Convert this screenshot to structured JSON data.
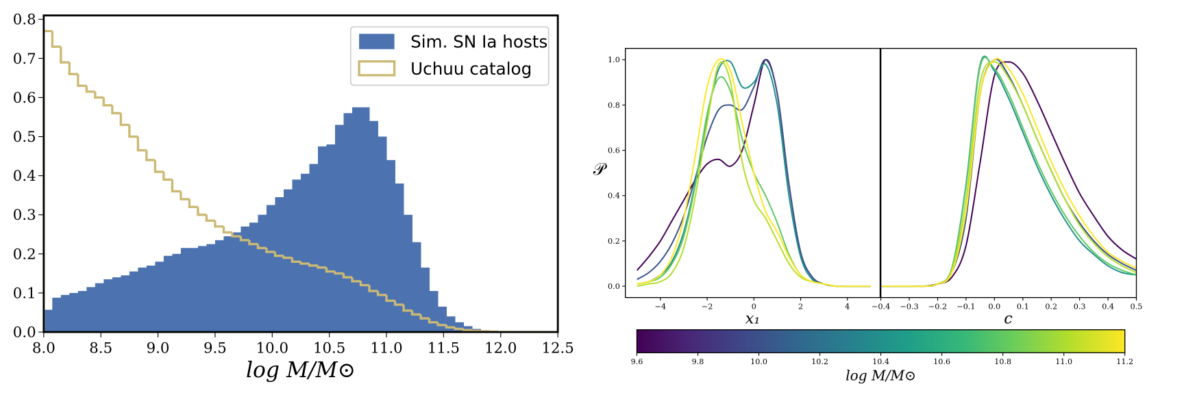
{
  "chart_data": [
    {
      "type": "histogram",
      "xlabel": "log M/M⊙",
      "legend": "upper right",
      "bins": [
        8,
        8.075,
        8.15,
        8.225,
        8.3,
        8.375,
        8.45,
        8.525,
        8.6,
        8.675,
        8.75,
        8.825,
        8.9,
        8.975,
        9.05,
        9.125,
        9.2,
        9.275,
        9.35,
        9.425,
        9.5,
        9.575,
        9.65,
        9.725,
        9.8,
        9.875,
        9.95,
        10.025,
        10.1,
        10.175,
        10.25,
        10.325,
        10.4,
        10.475,
        10.55,
        10.625,
        10.7,
        10.775,
        10.85,
        10.925,
        11,
        11.075,
        11.15,
        11.225,
        11.3,
        11.375,
        11.45,
        11.525,
        11.6,
        11.675,
        11.75,
        11.825,
        11.9,
        11.975,
        12.05,
        12.125,
        12.2,
        12.275,
        12.35,
        12.425,
        12.5
      ],
      "series": [
        {
          "name": "Sim. SN Ia hosts",
          "color": "#4c72b0",
          "histtype": "bar",
          "values": [
            0.057,
            0.088,
            0.095,
            0.1,
            0.105,
            0.115,
            0.125,
            0.135,
            0.14,
            0.145,
            0.155,
            0.165,
            0.17,
            0.18,
            0.195,
            0.2,
            0.215,
            0.215,
            0.22,
            0.225,
            0.235,
            0.245,
            0.255,
            0.27,
            0.28,
            0.3,
            0.325,
            0.345,
            0.365,
            0.39,
            0.405,
            0.43,
            0.475,
            0.48,
            0.53,
            0.56,
            0.575,
            0.575,
            0.54,
            0.5,
            0.44,
            0.38,
            0.3,
            0.23,
            0.165,
            0.105,
            0.065,
            0.04,
            0.025,
            0.015,
            0.008,
            0.004,
            0.002,
            0.001,
            0,
            0,
            0,
            0,
            0,
            0
          ]
        },
        {
          "name": "Uchuu catalog",
          "color": "#ccb974",
          "histtype": "step",
          "values": [
            0.77,
            0.73,
            0.69,
            0.66,
            0.63,
            0.615,
            0.6,
            0.58,
            0.56,
            0.53,
            0.5,
            0.465,
            0.44,
            0.41,
            0.39,
            0.36,
            0.34,
            0.32,
            0.3,
            0.285,
            0.27,
            0.255,
            0.245,
            0.235,
            0.225,
            0.215,
            0.205,
            0.195,
            0.19,
            0.18,
            0.175,
            0.17,
            0.165,
            0.155,
            0.15,
            0.14,
            0.13,
            0.12,
            0.105,
            0.095,
            0.08,
            0.07,
            0.055,
            0.045,
            0.035,
            0.025,
            0.018,
            0.012,
            0.008,
            0.005,
            0.003,
            0.002,
            0.001,
            0,
            0,
            0,
            0,
            0,
            0,
            0
          ]
        }
      ],
      "xlim": [
        8,
        12.5
      ],
      "xticks": [
        {
          "value": 8,
          "label": "8.0"
        },
        8.5,
        {
          "value": 9,
          "label": "9.0"
        },
        9.5,
        {
          "value": 10,
          "label": "10.0"
        },
        10.5,
        {
          "value": 11,
          "label": "11.0"
        },
        11.5,
        {
          "value": 12,
          "label": "12.0"
        },
        12.5
      ],
      "ylim": [
        0,
        0.81
      ],
      "yticks": [
        {
          "value": 0,
          "label": "0.0"
        },
        0.1,
        0.2,
        0.3,
        0.4,
        0.5,
        0.6,
        0.7,
        0.8
      ]
    },
    {
      "type": "line",
      "xlabel": "x₁",
      "ylabel": "𝒫",
      "x": [
        -5,
        -4.5,
        -4,
        -3.5,
        -3,
        -2.5,
        -2,
        -1.5,
        -1,
        -0.5,
        0,
        0.5,
        1,
        1.5,
        2,
        2.5,
        3,
        3.5,
        4,
        4.5,
        5
      ],
      "series": [
        {
          "color": "#440154",
          "values": [
            0.07,
            0.13,
            0.2,
            0.29,
            0.38,
            0.47,
            0.54,
            0.56,
            0.53,
            0.6,
            0.8,
            1.0,
            0.85,
            0.45,
            0.15,
            0.04,
            0.01,
            0,
            0,
            0,
            0
          ]
        },
        {
          "color": "#3b528b",
          "values": [
            0.03,
            0.06,
            0.11,
            0.19,
            0.31,
            0.48,
            0.66,
            0.78,
            0.8,
            0.78,
            0.88,
            1.0,
            0.85,
            0.45,
            0.15,
            0.04,
            0.01,
            0,
            0,
            0,
            0
          ]
        },
        {
          "color": "#21918c",
          "values": [
            0.01,
            0.02,
            0.05,
            0.11,
            0.24,
            0.46,
            0.75,
            0.96,
            0.99,
            0.88,
            0.9,
            0.98,
            0.8,
            0.4,
            0.13,
            0.03,
            0.01,
            0,
            0,
            0,
            0
          ]
        },
        {
          "color": "#5ec962",
          "values": [
            0.01,
            0.02,
            0.04,
            0.1,
            0.22,
            0.45,
            0.76,
            0.92,
            0.86,
            0.65,
            0.5,
            0.4,
            0.28,
            0.14,
            0.05,
            0.02,
            0.01,
            0,
            0,
            0,
            0
          ]
        },
        {
          "color": "#b5de2b",
          "values": [
            0,
            0.01,
            0.02,
            0.06,
            0.17,
            0.4,
            0.72,
            0.98,
            0.9,
            0.55,
            0.38,
            0.3,
            0.2,
            0.1,
            0.04,
            0.02,
            0.01,
            0,
            0,
            0,
            0
          ]
        },
        {
          "color": "#fde725",
          "values": [
            0.01,
            0.02,
            0.05,
            0.13,
            0.3,
            0.58,
            0.88,
            1.0,
            0.95,
            0.72,
            0.5,
            0.33,
            0.24,
            0.13,
            0.05,
            0.02,
            0.01,
            0,
            0,
            0,
            0
          ]
        }
      ],
      "xlim": [
        -5.5,
        5.4
      ],
      "xticks": [
        {
          "value": -4,
          "label": "−4"
        },
        {
          "value": -2,
          "label": "−2"
        },
        0,
        2,
        4
      ],
      "ylim": [
        -0.05,
        1.05
      ],
      "yticks": [
        {
          "value": 0,
          "label": "0.0"
        },
        0.2,
        0.4,
        0.6,
        0.8,
        {
          "value": 1,
          "label": "1.0"
        }
      ]
    },
    {
      "type": "line",
      "xlabel": "c",
      "x": [
        -0.4,
        -0.35,
        -0.3,
        -0.25,
        -0.2,
        -0.15,
        -0.1,
        -0.05,
        0,
        0.05,
        0.1,
        0.15,
        0.2,
        0.25,
        0.3,
        0.35,
        0.4,
        0.45,
        0.5
      ],
      "series": [
        {
          "color": "#440154",
          "values": [
            0,
            0,
            0,
            0,
            0.01,
            0.04,
            0.18,
            0.55,
            0.93,
            0.99,
            0.94,
            0.82,
            0.68,
            0.54,
            0.41,
            0.31,
            0.22,
            0.16,
            0.12
          ]
        },
        {
          "color": "#3b528b",
          "values": [
            0,
            0,
            0,
            0,
            0.01,
            0.06,
            0.3,
            0.85,
            1.0,
            0.93,
            0.8,
            0.65,
            0.51,
            0.38,
            0.28,
            0.2,
            0.14,
            0.1,
            0.07
          ]
        },
        {
          "color": "#21918c",
          "values": [
            0,
            0,
            0,
            0,
            0.01,
            0.08,
            0.45,
            0.98,
            0.95,
            0.83,
            0.68,
            0.53,
            0.4,
            0.29,
            0.2,
            0.14,
            0.09,
            0.06,
            0.05
          ]
        },
        {
          "color": "#5ec962",
          "values": [
            0,
            0,
            0,
            0,
            0.01,
            0.08,
            0.44,
            0.97,
            0.96,
            0.85,
            0.7,
            0.55,
            0.42,
            0.31,
            0.22,
            0.15,
            0.1,
            0.07,
            0.05
          ]
        },
        {
          "color": "#b5de2b",
          "values": [
            0,
            0,
            0,
            0,
            0.01,
            0.07,
            0.38,
            0.9,
            0.99,
            0.92,
            0.8,
            0.65,
            0.51,
            0.38,
            0.27,
            0.19,
            0.13,
            0.09,
            0.06
          ]
        },
        {
          "color": "#fde725",
          "values": [
            0,
            0,
            0,
            0,
            0.01,
            0.06,
            0.33,
            0.85,
            1.0,
            0.96,
            0.85,
            0.7,
            0.55,
            0.42,
            0.31,
            0.22,
            0.15,
            0.11,
            0.08
          ]
        }
      ],
      "xlim": [
        -0.4,
        0.5
      ],
      "xticks": [
        {
          "value": -0.4,
          "label": "−0.4"
        },
        {
          "value": -0.3,
          "label": "−0.3"
        },
        {
          "value": -0.2,
          "label": "−0.2"
        },
        {
          "value": -0.1,
          "label": "−0.1"
        },
        {
          "value": 0,
          "label": "0.0"
        },
        0.1,
        0.2,
        0.3,
        0.4,
        0.5
      ],
      "ylim": [
        -0.05,
        1.05
      ]
    },
    {
      "type": "colorbar",
      "xlabel": "log M/M⊙",
      "colors": [
        "#440154",
        "#482878",
        "#3e4989",
        "#31688e",
        "#26828e",
        "#1f9e89",
        "#35b779",
        "#6ece58",
        "#b5de2b",
        "#fde725"
      ],
      "xlim": [
        9.6,
        11.2
      ],
      "xticks": [
        9.6,
        9.8,
        {
          "value": 10,
          "label": "10.0"
        },
        10.2,
        10.4,
        10.6,
        10.8,
        {
          "value": 11,
          "label": "11.0"
        },
        11.2
      ]
    }
  ]
}
